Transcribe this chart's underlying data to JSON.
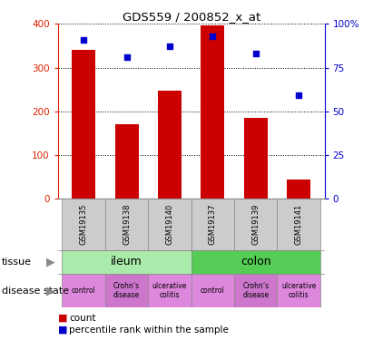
{
  "title": "GDS559 / 200852_x_at",
  "samples": [
    "GSM19135",
    "GSM19138",
    "GSM19140",
    "GSM19137",
    "GSM19139",
    "GSM19141"
  ],
  "bar_values": [
    340,
    170,
    248,
    397,
    186,
    45
  ],
  "percentile_values": [
    91,
    81,
    87,
    93,
    83,
    59
  ],
  "bar_color": "#cc0000",
  "dot_color": "#0000cc",
  "ylim_left": [
    0,
    400
  ],
  "ylim_right": [
    0,
    100
  ],
  "yticks_left": [
    0,
    100,
    200,
    300,
    400
  ],
  "yticks_right": [
    0,
    25,
    50,
    75,
    100
  ],
  "ytick_labels_left": [
    "0",
    "100",
    "200",
    "300",
    "400"
  ],
  "ytick_labels_right": [
    "0",
    "25",
    "50",
    "75",
    "100%"
  ],
  "tissue_spans": [
    {
      "label": "ileum",
      "start": 0,
      "end": 2,
      "color": "#aaeaaa"
    },
    {
      "label": "colon",
      "start": 3,
      "end": 5,
      "color": "#55cc55"
    }
  ],
  "disease_colors": [
    "#dd88dd",
    "#cc77cc",
    "#dd88dd",
    "#dd88dd",
    "#cc77cc",
    "#dd88dd"
  ],
  "disease_labels": [
    "control",
    "Crohn’s\ndisease",
    "ulcerative\ncolitis",
    "control",
    "Crohn’s\ndisease",
    "ulcerative\ncolitis"
  ],
  "sample_bg_color": "#cccccc",
  "tissue_label": "tissue",
  "disease_label": "disease state",
  "legend_count_label": "count",
  "legend_pct_label": "percentile rank within the sample",
  "bar_width": 0.55,
  "left_tick_color": "#dd2200",
  "right_tick_color": "#0000cc",
  "fig_bg": "#ffffff"
}
